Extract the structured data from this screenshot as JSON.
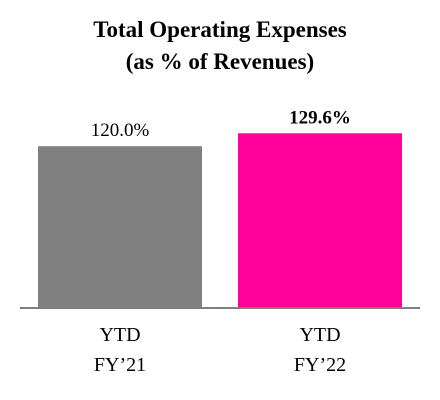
{
  "chart_data": {
    "type": "bar",
    "title": "Total Operating Expenses",
    "subtitle": "(as % of Revenues)",
    "categories": [
      "YTD FY’21",
      "YTD FY’22"
    ],
    "category_lines": [
      [
        "YTD",
        "FY’21"
      ],
      [
        "YTD",
        "FY’22"
      ]
    ],
    "values": [
      120.0,
      129.6
    ],
    "data_labels": [
      "120.0%",
      "129.6%"
    ],
    "data_label_bold": [
      false,
      true
    ],
    "bar_colors": [
      "#808080",
      "#FF0099"
    ],
    "ylim": [
      0,
      135
    ],
    "xlabel": "",
    "ylabel": "",
    "grid": false,
    "legend": "none"
  },
  "colors": {
    "axis": "#808080",
    "text": "#000000"
  }
}
